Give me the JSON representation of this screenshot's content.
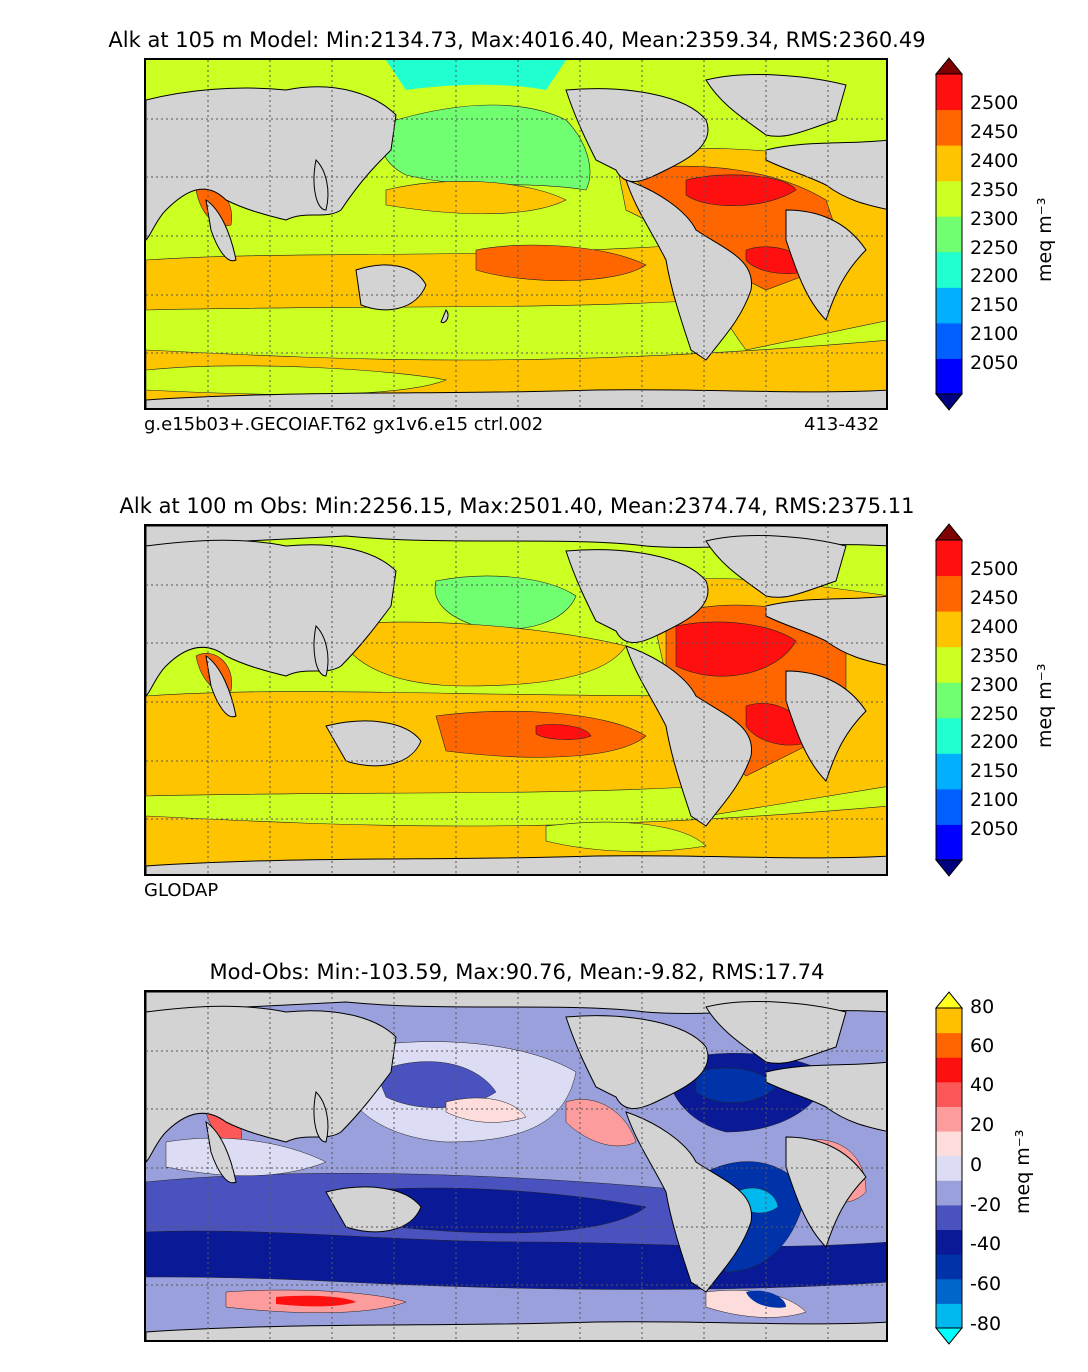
{
  "panels": [
    {
      "title": "Alk at 105 m Model: Min:2134.73, Max:4016.40, Mean:2359.34, RMS:2360.49",
      "footer_left": "g.e15b03+.GECOIAF.T62 gx1v6.e15 ctrl.002",
      "footer_right": "413-432",
      "colorbar": {
        "unit": "meq m⁻³",
        "ticks": [
          "2500",
          "2450",
          "2400",
          "2350",
          "2300",
          "2250",
          "2200",
          "2150",
          "2100",
          "2050"
        ],
        "colors": [
          "#000080",
          "#0000ff",
          "#0060ff",
          "#00b0ff",
          "#20ffd0",
          "#70ff70",
          "#ccff22",
          "#ffc400",
          "#ff6600",
          "#ff0f0f",
          "#7f0000"
        ]
      }
    },
    {
      "title": "Alk at 100 m Obs: Min:2256.15, Max:2501.40, Mean:2374.74, RMS:2375.11",
      "footer_left": "GLODAP",
      "footer_right": "",
      "colorbar": {
        "unit": "meq m⁻³",
        "ticks": [
          "2500",
          "2450",
          "2400",
          "2350",
          "2300",
          "2250",
          "2200",
          "2150",
          "2100",
          "2050"
        ],
        "colors": [
          "#000080",
          "#0000ff",
          "#0060ff",
          "#00b0ff",
          "#20ffd0",
          "#70ff70",
          "#ccff22",
          "#ffc400",
          "#ff6600",
          "#ff0f0f",
          "#7f0000"
        ]
      }
    },
    {
      "title": "Mod-Obs: Min:-103.59, Max:90.76, Mean:-9.82, RMS:17.74",
      "footer_left": "",
      "footer_right": "",
      "colorbar": {
        "unit": "meq m⁻³",
        "ticks": [
          "80",
          "60",
          "40",
          "20",
          "0",
          "-20",
          "-40",
          "-60",
          "-80"
        ],
        "colors": [
          "#00ffff",
          "#00b8ee",
          "#0066cc",
          "#0033aa",
          "#0a1a96",
          "#4a52c0",
          "#9aa0dc",
          "#dcdcf4",
          "#fddcdc",
          "#fc9c9c",
          "#fc5858",
          "#ff1010",
          "#ff6400",
          "#ffc000",
          "#ffff20"
        ]
      }
    }
  ],
  "colors": {
    "land": "#d3d3d3",
    "coast": "#000000",
    "grid": "#555555"
  }
}
